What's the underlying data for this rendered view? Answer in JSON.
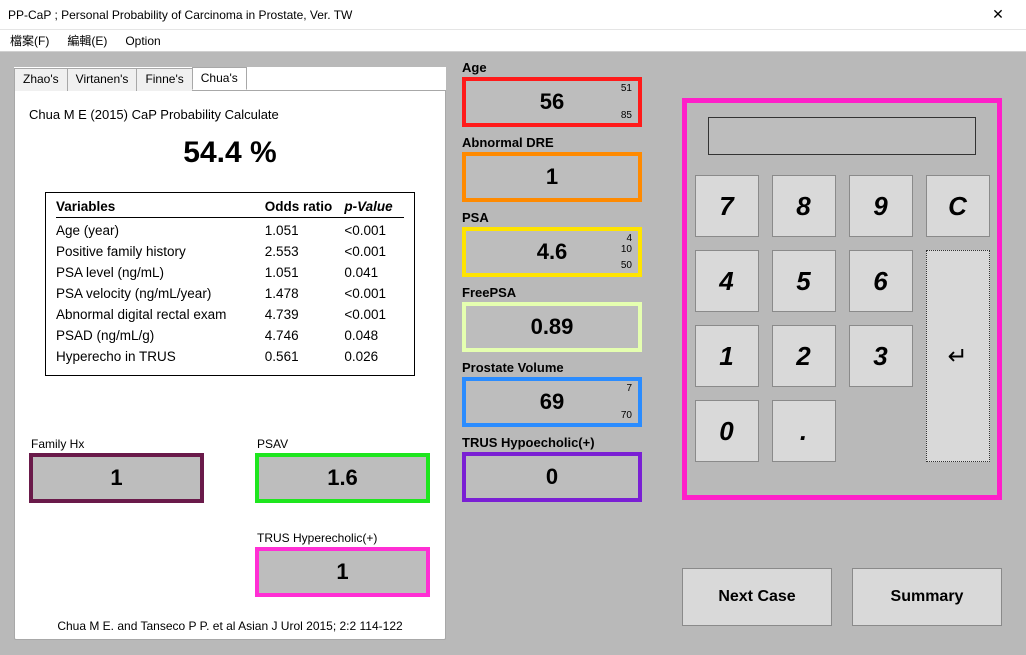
{
  "window": {
    "title": "PP-CaP ; Personal Probability of Carcinoma in Prostate, Ver. TW"
  },
  "menu": {
    "file": "檔案(F)",
    "edit": "編輯(E)",
    "option": "Option"
  },
  "tabs": {
    "t1": "Zhao's",
    "t2": "Virtanen's",
    "t3": "Finne's",
    "t4": "Chua's"
  },
  "panel": {
    "title": "Chua M E (2015) CaP Probability Calculate",
    "probability": "54.4 %",
    "headers": {
      "c1": "Variables",
      "c2": "Odds ratio",
      "c3": "p-Value"
    },
    "rows": [
      {
        "v": "Age (year)",
        "or": "1.051",
        "p": "<0.001"
      },
      {
        "v": "Positive family history",
        "or": "2.553",
        "p": "<0.001"
      },
      {
        "v": "PSA level (ng/mL)",
        "or": "1.051",
        "p": "0.041"
      },
      {
        "v": "PSA velocity (ng/mL/year)",
        "or": "1.478",
        "p": "<0.001"
      },
      {
        "v": "Abnormal digital rectal exam",
        "or": "4.739",
        "p": "<0.001"
      },
      {
        "v": "PSAD (ng/mL/g)",
        "or": "4.746",
        "p": "0.048"
      },
      {
        "v": "Hyperecho in TRUS",
        "or": "0.561",
        "p": "0.026"
      }
    ],
    "citation": "Chua M E. and Tanseco P P. et al   Asian J Urol  2015; 2:2 114-122"
  },
  "left_inputs": {
    "family": {
      "label": "Family Hx",
      "value": "1",
      "border": "#6a1a4a"
    },
    "psav": {
      "label": "PSAV",
      "value": "1.6",
      "border": "#1ee61e"
    },
    "trush": {
      "label": "TRUS Hyperecholic(+)",
      "value": "1",
      "border": "#ff2fd4"
    }
  },
  "center": {
    "age": {
      "label": "Age",
      "value": "56",
      "border": "#ff1a1a",
      "rmin": "51",
      "rmax": "85"
    },
    "dre": {
      "label": "Abnormal DRE",
      "value": "1",
      "border": "#ff8a00"
    },
    "psa": {
      "label": "PSA",
      "value": "4.6",
      "border": "#ffe400",
      "rmin": "4",
      "rmid": "10",
      "rmax": "50"
    },
    "fpsa": {
      "label": "FreePSA",
      "value": "0.89",
      "border": "#e5ffb0"
    },
    "pvol": {
      "label": "Prostate Volume",
      "value": "69",
      "border": "#2a8cff",
      "rmin": "7",
      "rmax": "70"
    },
    "hypo": {
      "label": "TRUS Hypoecholic(+)",
      "value": "0",
      "border": "#7a1fd4"
    }
  },
  "keypad": {
    "border": "#ff1fc9",
    "keys": {
      "k7": "7",
      "k8": "8",
      "k9": "9",
      "kc": "C",
      "k4": "4",
      "k5": "5",
      "k6": "6",
      "k1": "1",
      "k2": "2",
      "k3": "3",
      "k0": "0",
      "kd": ".",
      "enter": "↵"
    }
  },
  "buttons": {
    "next": "Next Case",
    "summary": "Summary"
  }
}
